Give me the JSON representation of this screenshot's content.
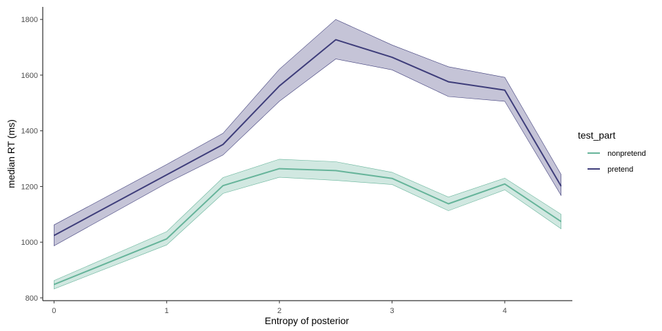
{
  "chart_data": {
    "type": "line",
    "xlabel": "Entropy of posterior",
    "ylabel": "median RT (ms)",
    "xlim": [
      -0.1,
      4.6
    ],
    "ylim": [
      790,
      1845
    ],
    "x_ticks": [
      0,
      1,
      2,
      3,
      4
    ],
    "y_ticks": [
      800,
      1000,
      1200,
      1400,
      1600,
      1800
    ],
    "grid": false,
    "legend": {
      "title": "test_part",
      "position": "right"
    },
    "x": [
      0,
      1,
      1.5,
      2,
      2.5,
      3,
      3.5,
      4,
      4.5
    ],
    "series": [
      {
        "name": "nonpretend",
        "color": "#66b49a",
        "values": [
          848,
          1012,
          1203,
          1264,
          1257,
          1229,
          1138,
          1209,
          1074
        ],
        "lower": [
          832,
          990,
          1175,
          1233,
          1222,
          1207,
          1113,
          1188,
          1048
        ],
        "upper": [
          862,
          1038,
          1232,
          1298,
          1289,
          1251,
          1162,
          1230,
          1100
        ]
      },
      {
        "name": "pretend",
        "color": "#3e3d7a",
        "values": [
          1024,
          1242,
          1351,
          1561,
          1727,
          1664,
          1576,
          1546,
          1201
        ],
        "lower": [
          987,
          1212,
          1313,
          1506,
          1658,
          1619,
          1523,
          1506,
          1168
        ],
        "upper": [
          1062,
          1279,
          1391,
          1621,
          1800,
          1708,
          1630,
          1592,
          1243
        ]
      }
    ]
  }
}
